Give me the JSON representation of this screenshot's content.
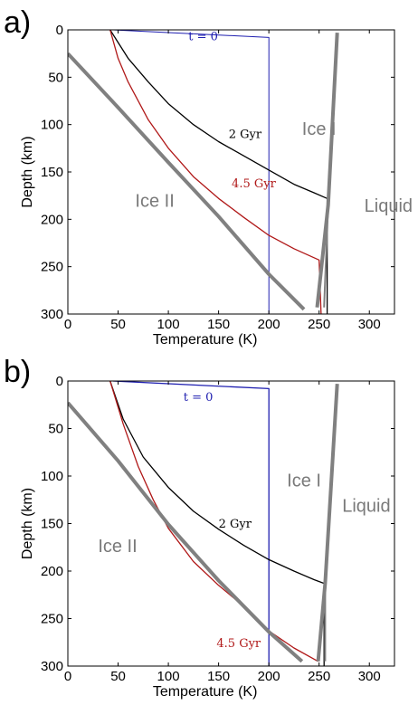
{
  "chart_data": [
    {
      "panel_label": "a)",
      "type": "line",
      "xlabel": "Temperature (K)",
      "ylabel": "Depth (km)",
      "xlim": [
        0,
        325
      ],
      "ylim": [
        300,
        0
      ],
      "x_ticks": [
        0,
        50,
        100,
        150,
        200,
        250,
        300
      ],
      "y_ticks": [
        0,
        50,
        100,
        150,
        200,
        250,
        300
      ],
      "grid": false,
      "series": [
        {
          "label": "t = 0",
          "color": "#2020b0",
          "width": 1,
          "points": [
            [
              45,
              0
            ],
            [
              200,
              8
            ],
            [
              200,
              300
            ]
          ]
        },
        {
          "label": "2 Gyr",
          "color": "#000000",
          "width": 1.3,
          "points": [
            [
              42,
              0
            ],
            [
              60,
              30
            ],
            [
              80,
              55
            ],
            [
              100,
              78
            ],
            [
              125,
              100
            ],
            [
              150,
              118
            ],
            [
              175,
              133
            ],
            [
              200,
              148
            ],
            [
              225,
              163
            ],
            [
              245,
              172
            ],
            [
              258,
              178
            ],
            [
              258,
              300
            ]
          ]
        },
        {
          "label": "4.5 Gyr",
          "color": "#b01818",
          "width": 1.3,
          "points": [
            [
              42,
              0
            ],
            [
              50,
              30
            ],
            [
              60,
              55
            ],
            [
              80,
              95
            ],
            [
              100,
              125
            ],
            [
              125,
              155
            ],
            [
              150,
              178
            ],
            [
              175,
              198
            ],
            [
              200,
              217
            ],
            [
              225,
              231
            ],
            [
              250,
              243
            ],
            [
              252,
              300
            ]
          ]
        },
        {
          "label": "",
          "color": "#808080",
          "width": 4,
          "points": [
            [
              0,
              25
            ],
            [
              50,
              82
            ],
            [
              100,
              140
            ],
            [
              150,
              197
            ],
            [
              200,
              258
            ],
            [
              235,
              295
            ]
          ]
        },
        {
          "label": "",
          "color": "#808080",
          "width": 4,
          "points": [
            [
              268,
              3
            ],
            [
              259,
              185
            ],
            [
              248,
              293
            ]
          ]
        },
        {
          "label": "",
          "color": "#808080",
          "width": 2,
          "points": [
            [
              259,
              185
            ],
            [
              255,
              293
            ]
          ]
        }
      ],
      "annotations": [
        {
          "text": "t = 0",
          "x": 120,
          "y": 4,
          "color": "#2020b0",
          "font": "serif"
        },
        {
          "text": "2 Gyr",
          "x": 160,
          "y": 107,
          "color": "#000000",
          "font": "serif"
        },
        {
          "text": "4.5 Gyr",
          "x": 163,
          "y": 159,
          "color": "#b01818",
          "font": "serif"
        },
        {
          "text": "Ice I",
          "x": 233,
          "y": 102,
          "color": "#7a7a7a",
          "font": "sans"
        },
        {
          "text": "Ice II",
          "x": 67,
          "y": 178,
          "color": "#7a7a7a",
          "font": "sans"
        },
        {
          "text": "Liquid",
          "x": 295,
          "y": 183,
          "color": "#7a7a7a",
          "font": "sans"
        }
      ]
    },
    {
      "panel_label": "b)",
      "type": "line",
      "xlabel": "Temperature (K)",
      "ylabel": "Depth (km)",
      "xlim": [
        0,
        325
      ],
      "ylim": [
        300,
        0
      ],
      "x_ticks": [
        0,
        50,
        100,
        150,
        200,
        250,
        300
      ],
      "y_ticks": [
        0,
        50,
        100,
        150,
        200,
        250,
        300
      ],
      "grid": false,
      "series": [
        {
          "label": "t = 0",
          "color": "#2020b0",
          "width": 1.3,
          "points": [
            [
              45,
              0
            ],
            [
              200,
              8
            ],
            [
              200,
              300
            ]
          ]
        },
        {
          "label": "2 Gyr",
          "color": "#000000",
          "width": 1.3,
          "points": [
            [
              42,
              0
            ],
            [
              55,
              40
            ],
            [
              75,
              80
            ],
            [
              100,
              112
            ],
            [
              125,
              137
            ],
            [
              150,
              156
            ],
            [
              175,
              173
            ],
            [
              200,
              188
            ],
            [
              225,
              200
            ],
            [
              245,
              209
            ],
            [
              255,
              213
            ],
            [
              255,
              300
            ]
          ]
        },
        {
          "label": "4.5 Gyr",
          "color": "#b01818",
          "width": 1.3,
          "points": [
            [
              42,
              0
            ],
            [
              55,
              45
            ],
            [
              70,
              90
            ],
            [
              85,
              125
            ],
            [
              100,
              155
            ],
            [
              125,
              190
            ],
            [
              150,
              215
            ],
            [
              175,
              237
            ],
            [
              200,
              263
            ],
            [
              225,
              281
            ],
            [
              249,
              295
            ]
          ]
        },
        {
          "label": "",
          "color": "#808080",
          "width": 4,
          "points": [
            [
              0,
              23
            ],
            [
              50,
              84
            ],
            [
              100,
              151
            ],
            [
              150,
              210
            ],
            [
              200,
              264
            ],
            [
              233,
              295
            ]
          ]
        },
        {
          "label": "",
          "color": "#808080",
          "width": 4,
          "points": [
            [
              268,
              3
            ],
            [
              256,
              213
            ],
            [
              249,
              295
            ]
          ]
        },
        {
          "label": "",
          "color": "#808080",
          "width": 2,
          "points": [
            [
              256,
              213
            ],
            [
              256,
              295
            ]
          ]
        }
      ],
      "annotations": [
        {
          "text": "t = 0",
          "x": 115,
          "y": 14,
          "color": "#2020b0",
          "font": "serif"
        },
        {
          "text": "2 Gyr",
          "x": 150,
          "y": 147,
          "color": "#000000",
          "font": "serif"
        },
        {
          "text": "4.5 Gyr",
          "x": 148,
          "y": 273,
          "color": "#b01818",
          "font": "serif"
        },
        {
          "text": "Ice I",
          "x": 218,
          "y": 102,
          "color": "#7a7a7a",
          "font": "sans"
        },
        {
          "text": "Ice II",
          "x": 30,
          "y": 171,
          "color": "#7a7a7a",
          "font": "sans"
        },
        {
          "text": "Liquid",
          "x": 273,
          "y": 129,
          "color": "#7a7a7a",
          "font": "sans"
        }
      ]
    }
  ]
}
